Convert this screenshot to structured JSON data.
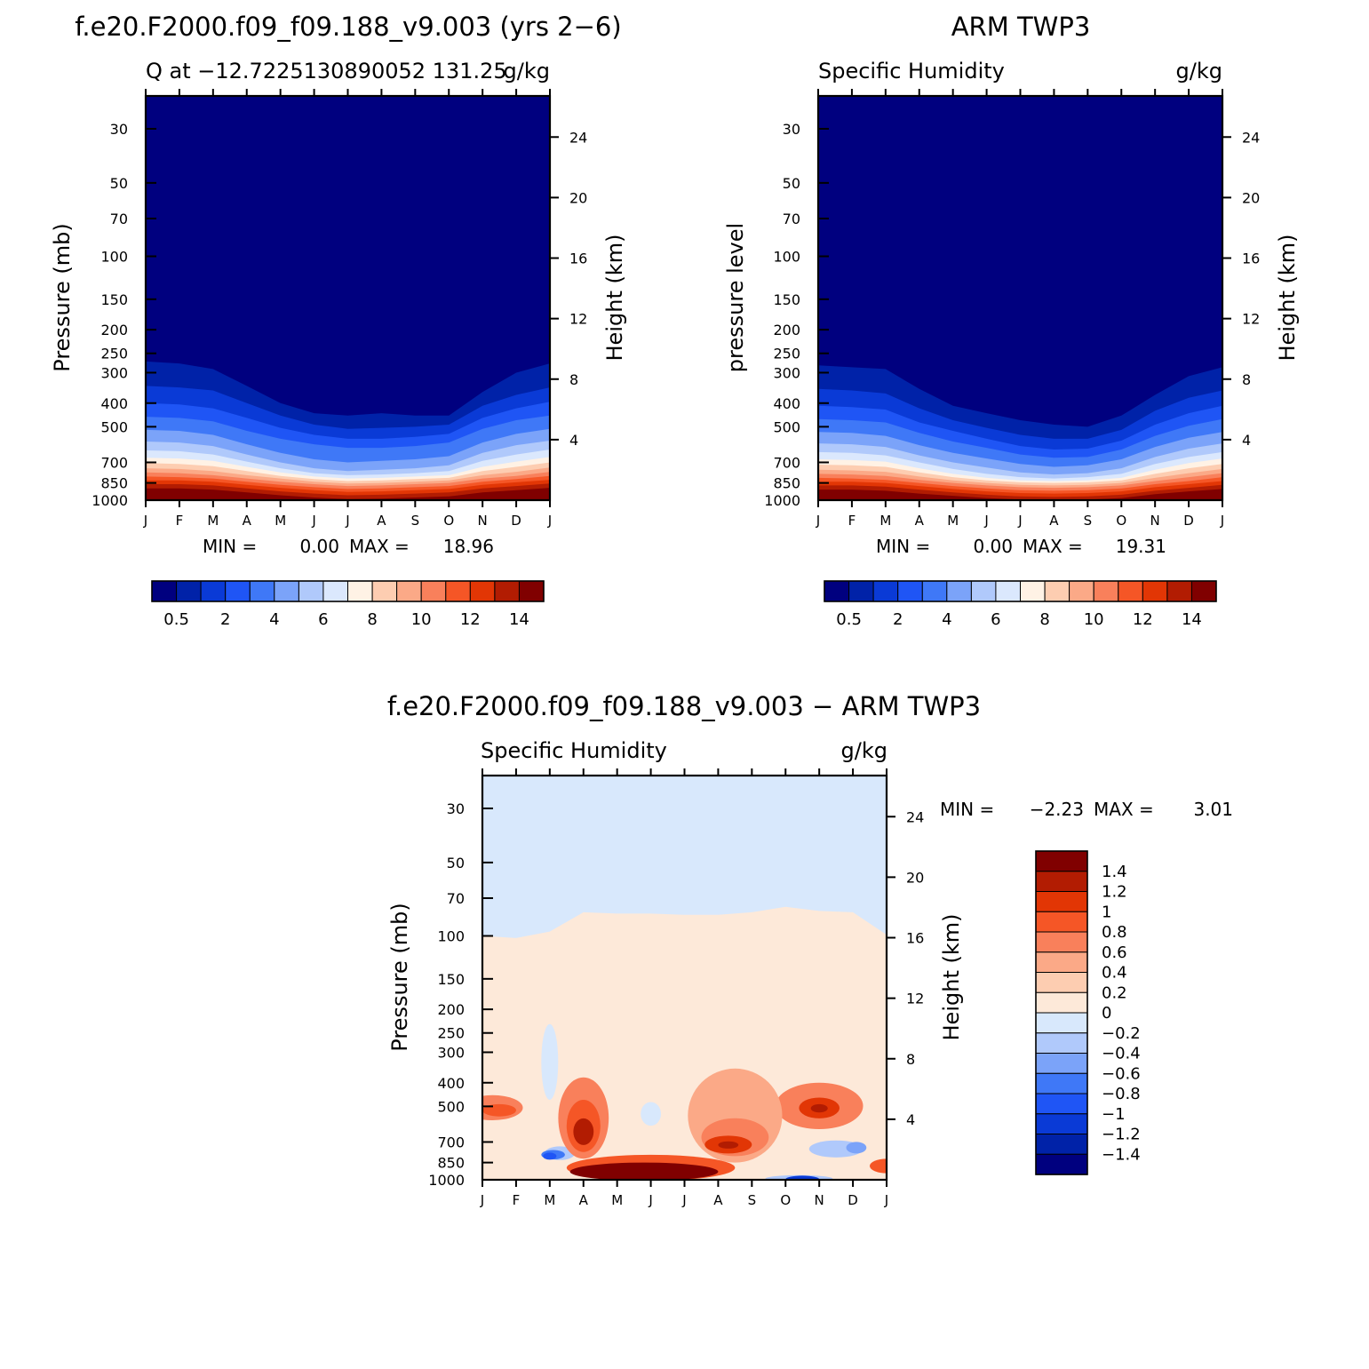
{
  "colors": {
    "full": [
      "#00007f",
      "#0022a8",
      "#0a3ad6",
      "#1f55f5",
      "#3f78f7",
      "#7ba3f9",
      "#b0c9fb",
      "#dbe8fd",
      "#fff2e5",
      "#fdcdb1",
      "#fba987",
      "#f9805b",
      "#f55626",
      "#e23605",
      "#b21c02",
      "#800000"
    ],
    "diff": [
      "#00007f",
      "#0022a8",
      "#0a3ad6",
      "#1f55f5",
      "#3f78f7",
      "#7ba3f9",
      "#b0c9fb",
      "#d8e8fc",
      "#fde9d9",
      "#fdcdb1",
      "#fba987",
      "#f9805b",
      "#f55626",
      "#e23605",
      "#b21c02",
      "#800000"
    ]
  },
  "chart_data": [
    {
      "type": "heatmap",
      "panel_title": "f.e20.F2000.f09_f09.188_v9.003 (yrs 2−6)",
      "left_label": "Q at −12.7225130890052 131.25",
      "right_label": "g/kg",
      "ylabel": "Pressure (mb)",
      "ylabel_right": "Height (km)",
      "y_ticks": [
        "30",
        "50",
        "70",
        "100",
        "150",
        "200",
        "250",
        "300",
        "400",
        "500",
        "700",
        "850",
        "1000"
      ],
      "y_ticks_right": [
        "24",
        "20",
        "16",
        "12",
        "8",
        "4"
      ],
      "x_ticks": [
        "J",
        "F",
        "M",
        "A",
        "M",
        "J",
        "J",
        "A",
        "S",
        "O",
        "N",
        "D",
        "J"
      ],
      "stats": {
        "min_label": "MIN =",
        "min": "0.00",
        "max_label": "MAX =",
        "max": "18.96"
      },
      "colorbar_labels": [
        "0.5",
        "2",
        "4",
        "6",
        "8",
        "10",
        "12",
        "14"
      ],
      "contour_levels_p": {
        "times": [
          0,
          1,
          2,
          3,
          4,
          5,
          6,
          7,
          8,
          9,
          10,
          11,
          12
        ],
        "levels": [
          [
            270,
            275,
            290,
            340,
            400,
            440,
            450,
            440,
            450,
            450,
            360,
            300,
            275
          ],
          [
            340,
            345,
            355,
            400,
            450,
            490,
            510,
            505,
            500,
            490,
            410,
            370,
            345
          ],
          [
            400,
            405,
            420,
            460,
            505,
            540,
            560,
            560,
            550,
            535,
            460,
            420,
            395
          ],
          [
            455,
            460,
            475,
            520,
            560,
            590,
            610,
            610,
            600,
            580,
            510,
            470,
            450
          ],
          [
            515,
            520,
            540,
            590,
            640,
            680,
            700,
            690,
            680,
            660,
            580,
            535,
            510
          ],
          [
            575,
            580,
            600,
            650,
            700,
            740,
            760,
            750,
            740,
            720,
            640,
            595,
            570
          ],
          [
            625,
            630,
            650,
            695,
            740,
            775,
            790,
            785,
            775,
            760,
            690,
            650,
            620
          ],
          [
            670,
            675,
            690,
            730,
            770,
            800,
            815,
            810,
            800,
            790,
            730,
            695,
            665
          ],
          [
            705,
            710,
            725,
            760,
            795,
            820,
            835,
            830,
            820,
            810,
            760,
            730,
            700
          ],
          [
            740,
            745,
            760,
            790,
            815,
            840,
            855,
            850,
            840,
            830,
            790,
            765,
            735
          ],
          [
            770,
            775,
            790,
            815,
            840,
            860,
            875,
            870,
            860,
            850,
            815,
            795,
            765
          ],
          [
            800,
            805,
            815,
            840,
            865,
            885,
            900,
            895,
            885,
            875,
            840,
            820,
            795
          ],
          [
            830,
            830,
            840,
            865,
            890,
            910,
            925,
            920,
            910,
            900,
            865,
            845,
            825
          ],
          [
            860,
            860,
            870,
            895,
            920,
            940,
            955,
            950,
            940,
            930,
            895,
            875,
            855
          ],
          [
            895,
            895,
            905,
            930,
            955,
            975,
            990,
            985,
            975,
            965,
            930,
            910,
            890
          ]
        ]
      }
    },
    {
      "type": "heatmap",
      "panel_title": "ARM TWP3",
      "left_label": "Specific Humidity",
      "right_label": "g/kg",
      "ylabel": "pressure level",
      "ylabel_right": "Height (km)",
      "y_ticks": [
        "30",
        "50",
        "70",
        "100",
        "150",
        "200",
        "250",
        "300",
        "400",
        "500",
        "700",
        "850",
        "1000"
      ],
      "y_ticks_right": [
        "24",
        "20",
        "16",
        "12",
        "8",
        "4"
      ],
      "x_ticks": [
        "J",
        "F",
        "M",
        "A",
        "M",
        "J",
        "J",
        "A",
        "S",
        "O",
        "N",
        "D",
        "J"
      ],
      "stats": {
        "min_label": "MIN =",
        "min": "0.00",
        "max_label": "MAX =",
        "max": "19.31"
      },
      "colorbar_labels": [
        "0.5",
        "2",
        "4",
        "6",
        "8",
        "10",
        "12",
        "14"
      ],
      "contour_levels_p": {
        "times": [
          0,
          1,
          2,
          3,
          4,
          5,
          6,
          7,
          8,
          9,
          10,
          11,
          12
        ],
        "levels": [
          [
            280,
            285,
            290,
            350,
            410,
            440,
            470,
            490,
            500,
            450,
            370,
            310,
            285
          ],
          [
            350,
            355,
            365,
            420,
            470,
            505,
            540,
            560,
            560,
            515,
            430,
            380,
            355
          ],
          [
            410,
            415,
            425,
            480,
            520,
            560,
            600,
            620,
            615,
            570,
            490,
            440,
            410
          ],
          [
            465,
            470,
            480,
            530,
            575,
            610,
            650,
            670,
            665,
            620,
            545,
            495,
            465
          ],
          [
            525,
            530,
            545,
            595,
            640,
            675,
            710,
            730,
            720,
            680,
            605,
            555,
            525
          ],
          [
            585,
            590,
            605,
            655,
            700,
            735,
            770,
            785,
            775,
            740,
            665,
            615,
            585
          ],
          [
            635,
            640,
            655,
            700,
            745,
            780,
            805,
            815,
            805,
            780,
            710,
            665,
            635
          ],
          [
            680,
            685,
            695,
            740,
            780,
            810,
            830,
            835,
            830,
            810,
            750,
            705,
            675
          ],
          [
            715,
            720,
            730,
            770,
            805,
            830,
            845,
            850,
            845,
            830,
            780,
            740,
            710
          ],
          [
            750,
            755,
            765,
            800,
            830,
            850,
            865,
            870,
            865,
            850,
            810,
            775,
            745
          ],
          [
            780,
            785,
            795,
            825,
            850,
            870,
            885,
            890,
            885,
            870,
            835,
            805,
            775
          ],
          [
            810,
            815,
            825,
            850,
            875,
            895,
            910,
            915,
            910,
            895,
            860,
            835,
            805
          ],
          [
            840,
            840,
            850,
            875,
            900,
            920,
            935,
            940,
            935,
            920,
            885,
            860,
            835
          ],
          [
            870,
            870,
            880,
            905,
            930,
            950,
            965,
            970,
            965,
            950,
            915,
            890,
            865
          ],
          [
            905,
            905,
            915,
            940,
            960,
            980,
            995,
            1000,
            995,
            980,
            945,
            920,
            900
          ]
        ]
      }
    },
    {
      "type": "heatmap",
      "panel_title": "f.e20.F2000.f09_f09.188_v9.003 − ARM TWP3",
      "left_label": "Specific Humidity",
      "right_label": "g/kg",
      "ylabel": "Pressure (mb)",
      "ylabel_right": "Height (km)",
      "y_ticks": [
        "30",
        "50",
        "70",
        "100",
        "150",
        "200",
        "250",
        "300",
        "400",
        "500",
        "700",
        "850",
        "1000"
      ],
      "y_ticks_right": [
        "24",
        "20",
        "16",
        "12",
        "8",
        "4"
      ],
      "x_ticks": [
        "J",
        "F",
        "M",
        "A",
        "M",
        "J",
        "J",
        "A",
        "S",
        "O",
        "N",
        "D",
        "J"
      ],
      "stats": {
        "min_label": "MIN =",
        "min": "−2.23",
        "max_label": "MAX =",
        "max": "3.01"
      },
      "colorbar_labels": [
        "1.4",
        "1.2",
        "1",
        "0.8",
        "0.6",
        "0.4",
        "0.2",
        "0",
        "−0.2",
        "−0.4",
        "−0.6",
        "−0.8",
        "−1",
        "−1.2",
        "−1.4"
      ],
      "boundary_0_p": {
        "times": [
          0,
          1,
          2,
          3,
          4,
          5,
          6,
          7,
          8,
          9,
          10,
          11,
          12
        ],
        "values": [
          100,
          102,
          96,
          80,
          81,
          81,
          82,
          82,
          80,
          76,
          79,
          80,
          99
        ]
      },
      "blobs": [
        {
          "cx": 2.3,
          "cp": 780,
          "rx": 0.45,
          "rp": 50,
          "level": 6
        },
        {
          "cx": 2.1,
          "cp": 790,
          "rx": 0.35,
          "rp": 35,
          "level": 4
        },
        {
          "cx": 2.0,
          "cp": 800,
          "rx": 0.2,
          "rp": 20,
          "level": 3
        },
        {
          "cx": 2.0,
          "cp": 350,
          "rx": 0.25,
          "rp": 120,
          "level": 7
        },
        {
          "cx": 5.0,
          "cp": 540,
          "rx": 0.3,
          "rp": 60,
          "level": 7
        },
        {
          "cx": 10.5,
          "cp": 750,
          "rx": 0.8,
          "rp": 60,
          "level": 6
        },
        {
          "cx": 11.1,
          "cp": 740,
          "rx": 0.3,
          "rp": 40,
          "level": 5
        },
        {
          "cx": 9.4,
          "cp": 990,
          "rx": 1.0,
          "rp": 20,
          "level": 6
        },
        {
          "cx": 9.5,
          "cp": 995,
          "rx": 0.5,
          "rp": 10,
          "level": 2
        },
        {
          "cx": 3.0,
          "cp": 600,
          "rx": 0.75,
          "rp": 220,
          "level": 11
        },
        {
          "cx": 3.0,
          "cp": 620,
          "rx": 0.5,
          "rp": 150,
          "level": 12
        },
        {
          "cx": 3.0,
          "cp": 640,
          "rx": 0.3,
          "rp": 80,
          "level": 14
        },
        {
          "cx": 0.3,
          "cp": 510,
          "rx": 0.9,
          "rp": 60,
          "level": 11
        },
        {
          "cx": 0.5,
          "cp": 520,
          "rx": 0.5,
          "rp": 30,
          "level": 12
        },
        {
          "cx": 10.0,
          "cp": 510,
          "rx": 1.3,
          "rp": 110,
          "level": 11
        },
        {
          "cx": 10.0,
          "cp": 510,
          "rx": 0.6,
          "rp": 50,
          "level": 13
        },
        {
          "cx": 10.0,
          "cp": 510,
          "rx": 0.25,
          "rp": 20,
          "level": 14
        },
        {
          "cx": 7.5,
          "cp": 600,
          "rx": 1.4,
          "rp": 250,
          "level": 10
        },
        {
          "cx": 7.5,
          "cp": 680,
          "rx": 1.0,
          "rp": 120,
          "level": 11
        },
        {
          "cx": 7.3,
          "cp": 720,
          "rx": 0.7,
          "rp": 60,
          "level": 13
        },
        {
          "cx": 7.3,
          "cp": 720,
          "rx": 0.3,
          "rp": 25,
          "level": 14
        },
        {
          "cx": 5.0,
          "cp": 900,
          "rx": 2.5,
          "rp": 110,
          "level": 12
        },
        {
          "cx": 4.8,
          "cp": 930,
          "rx": 2.2,
          "rp": 80,
          "level": 15
        },
        {
          "cx": 12.0,
          "cp": 880,
          "rx": 0.5,
          "rp": 60,
          "level": 12
        }
      ]
    }
  ]
}
